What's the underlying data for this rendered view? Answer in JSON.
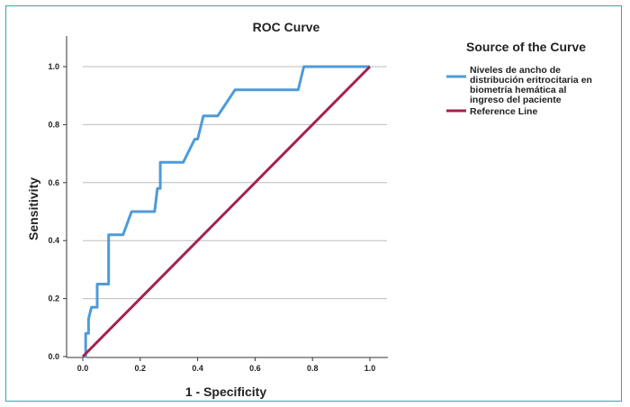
{
  "chart_data": {
    "type": "line",
    "title": "ROC Curve",
    "xlabel": "1 - Specificity",
    "ylabel": "Sensitivity",
    "xlim": [
      0,
      1
    ],
    "ylim": [
      0,
      1
    ],
    "x_ticks": [
      "0.0",
      "0.2",
      "0.4",
      "0.6",
      "0.8",
      "1.0"
    ],
    "y_ticks": [
      "0.0",
      "0.2",
      "0.4",
      "0.6",
      "0.8",
      "1.0"
    ],
    "grid": "horizontal",
    "legend": {
      "title": "Source of the Curve",
      "placement": "right",
      "entries": [
        {
          "lines": [
            "Niveles de ancho de",
            "distribución eritrocitaria en",
            "biometría hemática al",
            "ingreso del paciente"
          ],
          "color": "#4e9bd8"
        },
        {
          "lines": [
            "Reference Line"
          ],
          "color": "#a3234d"
        }
      ]
    },
    "series": [
      {
        "color": "#4e9bd8",
        "x": [
          0.0,
          0.01,
          0.01,
          0.02,
          0.02,
          0.03,
          0.05,
          0.05,
          0.06,
          0.09,
          0.09,
          0.14,
          0.17,
          0.17,
          0.25,
          0.26,
          0.27,
          0.27,
          0.35,
          0.39,
          0.4,
          0.42,
          0.42,
          0.47,
          0.53,
          0.75,
          0.77,
          0.77,
          1.0
        ],
        "y": [
          0.0,
          0.0,
          0.08,
          0.08,
          0.13,
          0.17,
          0.17,
          0.25,
          0.25,
          0.25,
          0.42,
          0.42,
          0.5,
          0.5,
          0.5,
          0.58,
          0.58,
          0.67,
          0.67,
          0.75,
          0.75,
          0.83,
          0.83,
          0.83,
          0.92,
          0.92,
          1.0,
          1.0,
          1.0
        ]
      },
      {
        "color": "#a3234d",
        "x": [
          0,
          1
        ],
        "y": [
          0,
          1
        ]
      }
    ]
  }
}
